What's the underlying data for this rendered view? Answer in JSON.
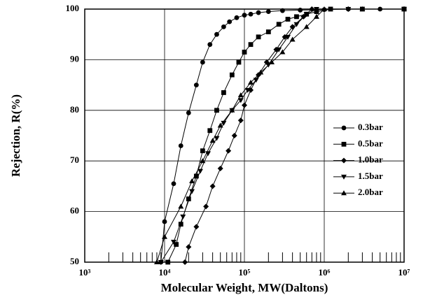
{
  "chart_data": {
    "type": "line",
    "xlabel": "Molecular Weight, MW(Daltons)",
    "ylabel": "Rejection, R(%)",
    "xscale": "log",
    "xlim": [
      1000,
      10000000
    ],
    "ylim": [
      50,
      100
    ],
    "xticks": [
      {
        "value": 1000,
        "label": "10³"
      },
      {
        "value": 10000,
        "label": "10⁴"
      },
      {
        "value": 100000,
        "label": "10⁵"
      },
      {
        "value": 1000000,
        "label": "10⁶"
      },
      {
        "value": 10000000,
        "label": "10⁷"
      }
    ],
    "xminorticks": [
      2000,
      3000,
      4000,
      5000,
      6000,
      7000,
      8000,
      9000,
      20000,
      30000,
      40000,
      50000,
      60000,
      70000,
      80000,
      90000,
      200000,
      300000,
      400000,
      500000,
      600000,
      700000,
      800000,
      900000,
      2000000,
      3000000,
      4000000,
      5000000,
      6000000,
      7000000,
      8000000,
      9000000
    ],
    "yticks": [
      50,
      60,
      70,
      80,
      90,
      100
    ],
    "grid": true,
    "legend": "right",
    "series": [
      {
        "name": "0.3bar",
        "color": "#000000",
        "marker": "circle",
        "x": [
          9000,
          10000,
          13000,
          16000,
          20000,
          25000,
          30000,
          37000,
          45000,
          55000,
          65000,
          80000,
          100000,
          120000,
          150000,
          200000,
          300000,
          500000,
          1000000,
          2000000,
          5000000,
          10000000
        ],
        "values": [
          50,
          58,
          65.5,
          73,
          79.5,
          85,
          89.5,
          93,
          95,
          96.5,
          97.5,
          98.3,
          98.8,
          99,
          99.3,
          99.5,
          99.7,
          99.8,
          99.9,
          100,
          100,
          100
        ]
      },
      {
        "name": "0.5bar",
        "color": "#000000",
        "marker": "square",
        "x": [
          11000,
          14000,
          16000,
          20000,
          25000,
          30000,
          37000,
          45000,
          55000,
          70000,
          85000,
          100000,
          120000,
          150000,
          200000,
          270000,
          350000,
          450000,
          600000,
          800000,
          1200000,
          3000000,
          10000000
        ],
        "values": [
          50,
          53.5,
          57.5,
          62.5,
          67,
          72,
          76,
          80,
          83.5,
          87,
          89.5,
          91.5,
          93,
          94.5,
          95.5,
          97,
          98,
          98.5,
          99,
          99.5,
          100,
          100,
          100
        ]
      },
      {
        "name": "1.0bar",
        "color": "#000000",
        "marker": "diamond",
        "x": [
          18000,
          20000,
          25000,
          33000,
          40000,
          50000,
          63000,
          75000,
          90000,
          100000,
          120000,
          150000,
          190000,
          250000,
          320000,
          400000,
          550000,
          700000,
          2000000,
          10000000
        ],
        "values": [
          50,
          53,
          57,
          61,
          65,
          68.5,
          72,
          75,
          78,
          81,
          84,
          87,
          89.5,
          92,
          94.5,
          96.5,
          98.5,
          100,
          100,
          100
        ]
      },
      {
        "name": "1.5bar",
        "color": "#000000",
        "marker": "triangle-down",
        "x": [
          9000,
          13000,
          17000,
          22000,
          28000,
          35000,
          45000,
          55000,
          70000,
          90000,
          110000,
          140000,
          200000,
          270000,
          350000,
          450000,
          600000,
          800000,
          2000000,
          10000000
        ],
        "values": [
          50,
          54,
          59,
          64,
          68,
          71.5,
          74.5,
          77.5,
          80,
          82,
          84,
          86,
          89,
          92,
          94.5,
          97,
          99,
          100,
          100,
          100
        ]
      },
      {
        "name": "2.0bar",
        "color": "#000000",
        "marker": "triangle-up",
        "x": [
          8000,
          10000,
          16000,
          22000,
          30000,
          40000,
          50000,
          70000,
          90000,
          120000,
          160000,
          220000,
          300000,
          400000,
          600000,
          800000,
          1000000,
          3000000,
          10000000
        ],
        "values": [
          50,
          55,
          61,
          66,
          70,
          74,
          77,
          80,
          83,
          85.5,
          87.5,
          89.5,
          91.5,
          94,
          96.5,
          98.5,
          100,
          100,
          100
        ]
      }
    ]
  }
}
